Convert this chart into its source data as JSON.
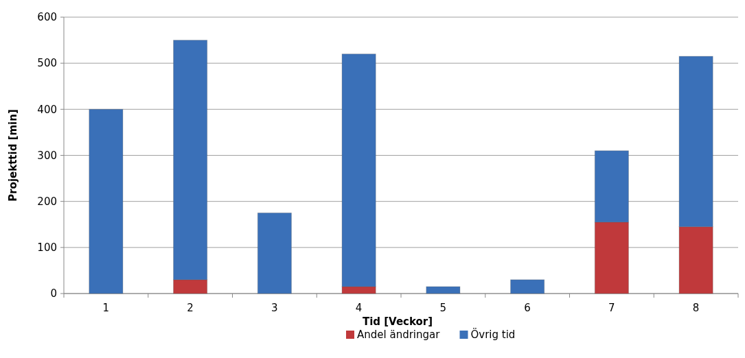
{
  "chart_data": {
    "type": "bar",
    "xlabel": "Tid [Veckor]",
    "ylabel": "Projekttid [min]",
    "categories": [
      "1",
      "2",
      "3",
      "4",
      "5",
      "6",
      "7",
      "8"
    ],
    "stacked": true,
    "series": [
      {
        "name": "Andel ändringar",
        "color": "#c0393b",
        "values": [
          0,
          30,
          0,
          15,
          0,
          0,
          155,
          145
        ]
      },
      {
        "name": "Övrig tid",
        "color": "#3a70b8",
        "values": [
          400,
          520,
          175,
          505,
          15,
          30,
          155,
          370
        ]
      }
    ],
    "ylim": [
      0,
      600
    ],
    "yticks": [
      0,
      100,
      200,
      300,
      400,
      500,
      600
    ],
    "grid": "y",
    "legend": "bottom"
  }
}
